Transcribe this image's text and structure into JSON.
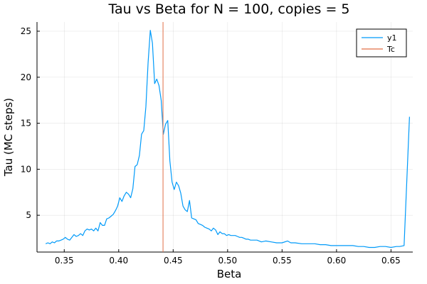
{
  "chart_data": {
    "type": "line",
    "title": "Tau vs Beta for N = 100, copies = 5",
    "xlabel": "Beta",
    "ylabel": "Tau (MC steps)",
    "xlim": [
      0.325,
      0.67
    ],
    "ylim": [
      1.0,
      26.0
    ],
    "xticks": [
      0.35,
      0.4,
      0.45,
      0.5,
      0.55,
      0.6,
      0.65
    ],
    "xtick_labels": [
      "0.35",
      "0.40",
      "0.45",
      "0.50",
      "0.55",
      "0.60",
      "0.65"
    ],
    "yticks": [
      5,
      10,
      15,
      20,
      25
    ],
    "ytick_labels": [
      "5",
      "10",
      "15",
      "20",
      "25"
    ],
    "grid": true,
    "legend_position": "top-right",
    "series": [
      {
        "name": "y1",
        "color": "#009AF9",
        "x": [
          0.333,
          0.335,
          0.337,
          0.339,
          0.341,
          0.343,
          0.345,
          0.347,
          0.349,
          0.351,
          0.353,
          0.355,
          0.357,
          0.359,
          0.361,
          0.363,
          0.365,
          0.367,
          0.369,
          0.371,
          0.373,
          0.375,
          0.377,
          0.379,
          0.381,
          0.383,
          0.385,
          0.387,
          0.389,
          0.391,
          0.393,
          0.395,
          0.397,
          0.399,
          0.401,
          0.403,
          0.405,
          0.407,
          0.409,
          0.411,
          0.413,
          0.415,
          0.417,
          0.419,
          0.421,
          0.423,
          0.425,
          0.427,
          0.429,
          0.431,
          0.433,
          0.435,
          0.437,
          0.439,
          0.441,
          0.443,
          0.445,
          0.447,
          0.449,
          0.451,
          0.453,
          0.455,
          0.457,
          0.459,
          0.461,
          0.463,
          0.465,
          0.467,
          0.469,
          0.471,
          0.473,
          0.475,
          0.477,
          0.479,
          0.481,
          0.483,
          0.485,
          0.487,
          0.489,
          0.491,
          0.493,
          0.495,
          0.497,
          0.499,
          0.501,
          0.503,
          0.505,
          0.507,
          0.509,
          0.511,
          0.513,
          0.515,
          0.517,
          0.519,
          0.521,
          0.523,
          0.525,
          0.527,
          0.529,
          0.531,
          0.535,
          0.54,
          0.545,
          0.55,
          0.555,
          0.558,
          0.562,
          0.568,
          0.575,
          0.58,
          0.585,
          0.59,
          0.595,
          0.6,
          0.605,
          0.61,
          0.615,
          0.62,
          0.625,
          0.63,
          0.635,
          0.64,
          0.645,
          0.65,
          0.655,
          0.658,
          0.662,
          0.665,
          0.667
        ],
        "y": [
          1.9,
          2.0,
          1.9,
          2.1,
          2.0,
          2.2,
          2.2,
          2.3,
          2.4,
          2.6,
          2.4,
          2.3,
          2.6,
          2.9,
          2.7,
          2.8,
          3.0,
          2.8,
          3.3,
          3.5,
          3.4,
          3.5,
          3.3,
          3.6,
          3.3,
          4.2,
          3.9,
          3.9,
          4.6,
          4.7,
          4.9,
          5.1,
          5.5,
          6.0,
          6.9,
          6.5,
          7.1,
          7.5,
          7.3,
          6.9,
          7.9,
          10.3,
          10.5,
          11.5,
          13.8,
          14.2,
          16.8,
          21.6,
          25.1,
          23.7,
          19.3,
          19.8,
          19.1,
          17.5,
          13.8,
          14.9,
          15.3,
          10.9,
          8.6,
          7.8,
          8.6,
          8.2,
          7.4,
          6.0,
          5.6,
          5.4,
          6.6,
          4.7,
          4.6,
          4.5,
          4.1,
          4.0,
          3.9,
          3.7,
          3.6,
          3.5,
          3.3,
          3.6,
          3.4,
          2.9,
          3.2,
          3.0,
          3.0,
          2.8,
          2.9,
          2.8,
          2.8,
          2.8,
          2.7,
          2.6,
          2.6,
          2.5,
          2.4,
          2.4,
          2.3,
          2.3,
          2.3,
          2.3,
          2.2,
          2.1,
          2.2,
          2.1,
          2.0,
          2.0,
          2.2,
          2.0,
          2.0,
          1.9,
          1.9,
          1.9,
          1.8,
          1.8,
          1.7,
          1.7,
          1.7,
          1.7,
          1.7,
          1.6,
          1.6,
          1.5,
          1.5,
          1.6,
          1.6,
          1.5,
          1.6,
          1.6,
          1.7,
          10.0,
          15.7
        ]
      },
      {
        "name": "Tc",
        "color": "#E26F46",
        "type": "vline",
        "x": 0.4407
      }
    ]
  }
}
